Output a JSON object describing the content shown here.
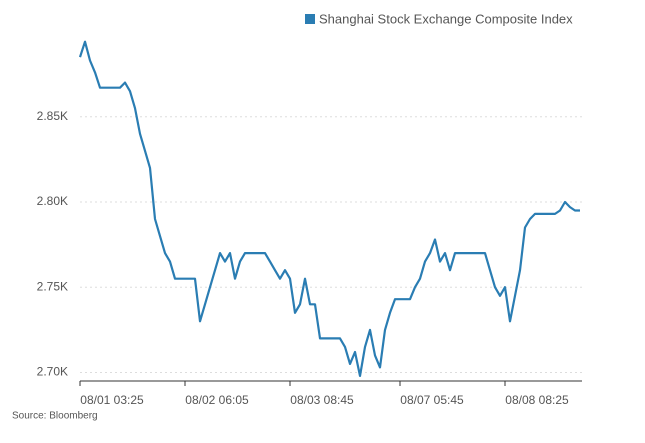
{
  "chart_data": {
    "type": "line",
    "categories": [
      "08/01 03:25",
      null,
      null,
      null,
      null,
      null,
      null,
      null,
      null,
      null,
      null,
      null,
      null,
      null,
      null,
      null,
      null,
      null,
      null,
      null,
      null,
      "08/02 06:05",
      null,
      null,
      null,
      null,
      null,
      null,
      null,
      null,
      null,
      null,
      null,
      null,
      null,
      null,
      null,
      null,
      null,
      null,
      null,
      null,
      "08/03 08:45",
      null,
      null,
      null,
      null,
      null,
      null,
      null,
      null,
      null,
      null,
      null,
      null,
      null,
      null,
      null,
      null,
      null,
      null,
      null,
      null,
      null,
      "08/07 05:45",
      null,
      null,
      null,
      null,
      null,
      null,
      null,
      null,
      null,
      null,
      null,
      null,
      null,
      null,
      null,
      null,
      null,
      null,
      null,
      null,
      "08/08 08:25",
      null,
      null,
      null,
      null,
      null,
      null,
      null,
      null,
      null,
      null,
      null,
      null,
      null,
      null,
      null
    ],
    "series": [
      {
        "name": "Shanghai Stock Exchange Composite Index",
        "color": "#2a7db3",
        "values": [
          2885,
          2894,
          2883,
          2876,
          2867,
          2867,
          2867,
          2867,
          2867,
          2870,
          2865,
          2855,
          2840,
          2830,
          2820,
          2790,
          2780,
          2770,
          2765,
          2755,
          2755,
          2755,
          2755,
          2755,
          2730,
          2740,
          2750,
          2760,
          2770,
          2765,
          2770,
          2755,
          2765,
          2770,
          2770,
          2770,
          2770,
          2770,
          2765,
          2760,
          2755,
          2760,
          2755,
          2735,
          2740,
          2755,
          2740,
          2740,
          2720,
          2720,
          2720,
          2720,
          2720,
          2715,
          2705,
          2712,
          2698,
          2715,
          2725,
          2710,
          2703,
          2725,
          2735,
          2743,
          2743,
          2743,
          2743,
          2750,
          2755,
          2765,
          2770,
          2778,
          2765,
          2770,
          2760,
          2770,
          2770,
          2770,
          2770,
          2770,
          2770,
          2770,
          2760,
          2750,
          2745,
          2750,
          2730,
          2745,
          2760,
          2785,
          2790,
          2793,
          2793,
          2793,
          2793,
          2793,
          2795,
          2800,
          2797,
          2795,
          2795
        ]
      }
    ],
    "ylim": [
      2695,
      2895
    ],
    "yticks": [
      {
        "value": 2700,
        "label": "2.70K"
      },
      {
        "value": 2750,
        "label": "2.75K"
      },
      {
        "value": 2800,
        "label": "2.80K"
      },
      {
        "value": 2850,
        "label": "2.85K"
      }
    ],
    "grid": true,
    "legend": "top-right",
    "source": "Source: Bloomberg"
  }
}
